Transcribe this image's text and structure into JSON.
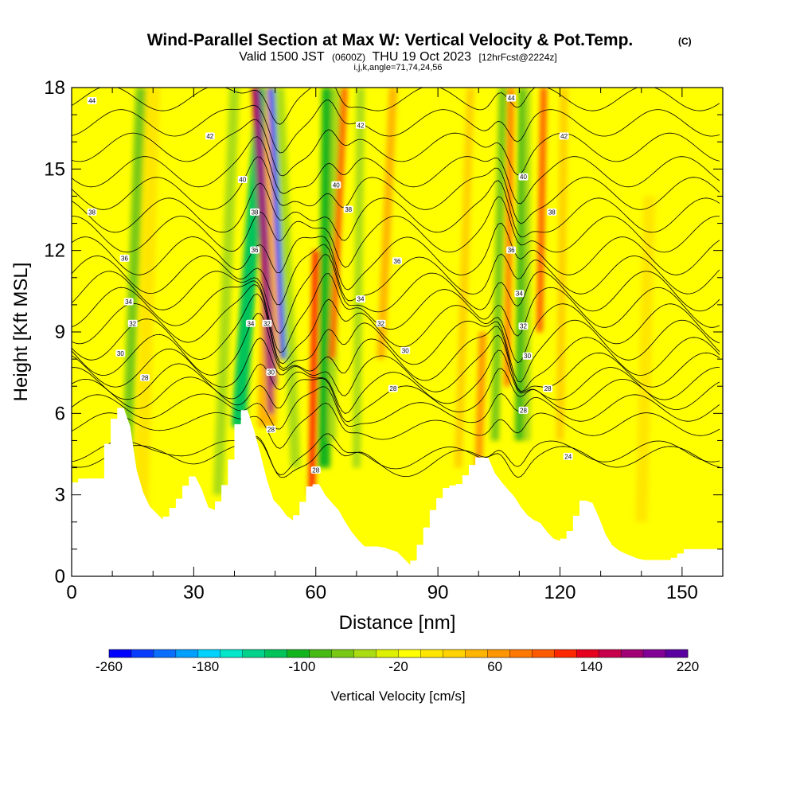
{
  "title": {
    "main": "Wind-Parallel Section at Max W: Vertical Velocity & Pot.Temp.",
    "copyright": "(C)",
    "valid_prefix": "Valid 1500 JST",
    "valid_utc": "(0600Z)",
    "valid_date": "THU 19 Oct 2023",
    "forecast": "[12hrFcst@2224z]",
    "indices": "i,j,k,angle=71,74,24,56"
  },
  "chart_data": {
    "type": "heatmap",
    "xlabel": "Distance [nm]",
    "ylabel": "Height [Kft MSL]",
    "xlim": [
      0,
      160
    ],
    "ylim": [
      0,
      18
    ],
    "xticks": [
      0,
      30,
      60,
      90,
      120,
      150
    ],
    "yticks": [
      0,
      3,
      6,
      9,
      12,
      15,
      18
    ],
    "xtick_labels": [
      "0",
      "30",
      "60",
      "90",
      "120",
      "150"
    ],
    "ytick_labels": [
      "0",
      "3",
      "6",
      "9",
      "12",
      "15",
      "18"
    ],
    "colorbar": {
      "title": "Vertical Velocity [cm/s]",
      "min": -260,
      "max": 220,
      "step": 20,
      "tick_values": [
        -260,
        -180,
        -100,
        -20,
        60,
        140,
        220
      ],
      "tick_labels": [
        "-260",
        "-180",
        "-100",
        "-20",
        "60",
        "140",
        "220"
      ],
      "colors": [
        "#0000ff",
        "#0a3cff",
        "#0a6eff",
        "#00a0ff",
        "#00d2ff",
        "#00e6c8",
        "#00d28c",
        "#00c35a",
        "#14b41e",
        "#46b914",
        "#78c814",
        "#aadc14",
        "#dcf000",
        "#ffff00",
        "#ffe600",
        "#ffd200",
        "#ffb400",
        "#ff9600",
        "#ff7800",
        "#ff5a00",
        "#ff2800",
        "#e6001e",
        "#c8004b",
        "#a00073",
        "#820096",
        "#5a00a0"
      ]
    },
    "terrain_profile": [
      {
        "x": 0,
        "h": 3.3
      },
      {
        "x": 3,
        "h": 3.6
      },
      {
        "x": 8,
        "h": 3.6
      },
      {
        "x": 10,
        "h": 5.2
      },
      {
        "x": 12,
        "h": 6.2
      },
      {
        "x": 14,
        "h": 6.2
      },
      {
        "x": 15,
        "h": 4.5
      },
      {
        "x": 17,
        "h": 3.3
      },
      {
        "x": 19,
        "h": 2.6
      },
      {
        "x": 21,
        "h": 2.3
      },
      {
        "x": 23,
        "h": 2.0
      },
      {
        "x": 25,
        "h": 2.4
      },
      {
        "x": 27,
        "h": 2.8
      },
      {
        "x": 29,
        "h": 3.4
      },
      {
        "x": 31,
        "h": 3.8
      },
      {
        "x": 33,
        "h": 2.6
      },
      {
        "x": 35,
        "h": 2.4
      },
      {
        "x": 37,
        "h": 2.8
      },
      {
        "x": 39,
        "h": 3.6
      },
      {
        "x": 41,
        "h": 5.0
      },
      {
        "x": 42,
        "h": 6.0
      },
      {
        "x": 44,
        "h": 6.2
      },
      {
        "x": 45,
        "h": 5.2
      },
      {
        "x": 47,
        "h": 4.2
      },
      {
        "x": 49,
        "h": 2.9
      },
      {
        "x": 51,
        "h": 2.6
      },
      {
        "x": 53,
        "h": 2.2
      },
      {
        "x": 55,
        "h": 2.0
      },
      {
        "x": 57,
        "h": 2.5
      },
      {
        "x": 59,
        "h": 3.3
      },
      {
        "x": 61,
        "h": 3.4
      },
      {
        "x": 63,
        "h": 2.8
      },
      {
        "x": 65,
        "h": 2.6
      },
      {
        "x": 68,
        "h": 1.8
      },
      {
        "x": 70,
        "h": 1.4
      },
      {
        "x": 72,
        "h": 1.1
      },
      {
        "x": 76,
        "h": 1.1
      },
      {
        "x": 80,
        "h": 0.9
      },
      {
        "x": 82,
        "h": 0.6
      },
      {
        "x": 84,
        "h": 0.3
      },
      {
        "x": 86,
        "h": 1.0
      },
      {
        "x": 88,
        "h": 1.8
      },
      {
        "x": 90,
        "h": 2.6
      },
      {
        "x": 93,
        "h": 3.3
      },
      {
        "x": 96,
        "h": 3.4
      },
      {
        "x": 98,
        "h": 3.8
      },
      {
        "x": 100,
        "h": 4.3
      },
      {
        "x": 102,
        "h": 4.5
      },
      {
        "x": 104,
        "h": 3.8
      },
      {
        "x": 106,
        "h": 3.4
      },
      {
        "x": 109,
        "h": 2.9
      },
      {
        "x": 111,
        "h": 2.4
      },
      {
        "x": 113,
        "h": 2.1
      },
      {
        "x": 115,
        "h": 2.0
      },
      {
        "x": 117,
        "h": 1.6
      },
      {
        "x": 119,
        "h": 1.3
      },
      {
        "x": 121,
        "h": 1.3
      },
      {
        "x": 123,
        "h": 1.6
      },
      {
        "x": 125,
        "h": 2.3
      },
      {
        "x": 127,
        "h": 3.0
      },
      {
        "x": 129,
        "h": 2.4
      },
      {
        "x": 131,
        "h": 1.6
      },
      {
        "x": 133,
        "h": 1.1
      },
      {
        "x": 135,
        "h": 0.9
      },
      {
        "x": 140,
        "h": 0.6
      },
      {
        "x": 148,
        "h": 0.6
      },
      {
        "x": 150,
        "h": 0.8
      },
      {
        "x": 152,
        "h": 1.0
      },
      {
        "x": 160,
        "h": 1.0
      }
    ],
    "velocity_bands": [
      {
        "x_base": 13,
        "x_top": 17,
        "width": 2.5,
        "value": -60,
        "h_from": 2,
        "h_to": 18
      },
      {
        "x_base": 16,
        "x_top": 19,
        "width": 1.2,
        "value": 80,
        "h_from": 2,
        "h_to": 18
      },
      {
        "x_base": 17,
        "x_top": 20,
        "width": 3.5,
        "value": 20,
        "h_from": 2,
        "h_to": 18
      },
      {
        "x_base": 36,
        "x_top": 40,
        "width": 2.5,
        "value": -40,
        "h_from": 3,
        "h_to": 18
      },
      {
        "x_base": 41,
        "x_top": 47,
        "width": 3.5,
        "value": -110,
        "h_from": 5.5,
        "h_to": 18
      },
      {
        "x_base": 48,
        "x_top": 50,
        "width": 4.5,
        "value": 60,
        "h_from": 5.5,
        "h_to": 18
      },
      {
        "x_base": 49,
        "x_top": 45,
        "width": 1.4,
        "value": 200,
        "h_from": 6,
        "h_to": 18
      },
      {
        "x_base": 50,
        "x_top": 46,
        "width": 0.8,
        "value": 220,
        "h_from": 7,
        "h_to": 18
      },
      {
        "x_base": 52,
        "x_top": 49,
        "width": 1.4,
        "value": -240,
        "h_from": 8,
        "h_to": 18
      },
      {
        "x_base": 55,
        "x_top": 51,
        "width": 2.5,
        "value": -30,
        "h_from": 4,
        "h_to": 18
      },
      {
        "x_base": 59,
        "x_top": 60,
        "width": 1.6,
        "value": 140,
        "h_from": 3,
        "h_to": 12
      },
      {
        "x_base": 62,
        "x_top": 63,
        "width": 3.0,
        "value": -100,
        "h_from": 4,
        "h_to": 18
      },
      {
        "x_base": 64,
        "x_top": 65,
        "width": 2.0,
        "value": -40,
        "h_from": 5,
        "h_to": 18
      },
      {
        "x_base": 64,
        "x_top": 67,
        "width": 1.5,
        "value": 120,
        "h_from": 8,
        "h_to": 18
      },
      {
        "x_base": 70,
        "x_top": 71,
        "width": 2.0,
        "value": -40,
        "h_from": 4,
        "h_to": 18
      },
      {
        "x_base": 76,
        "x_top": 79,
        "width": 2.0,
        "value": 60,
        "h_from": 8,
        "h_to": 18
      },
      {
        "x_base": 95,
        "x_top": 98,
        "width": 2.0,
        "value": 50,
        "h_from": 4,
        "h_to": 18
      },
      {
        "x_base": 104,
        "x_top": 106,
        "width": 2.0,
        "value": -60,
        "h_from": 5,
        "h_to": 18
      },
      {
        "x_base": 107,
        "x_top": 108,
        "width": 1.4,
        "value": 100,
        "h_from": 7,
        "h_to": 18
      },
      {
        "x_base": 110,
        "x_top": 111,
        "width": 2.2,
        "value": -70,
        "h_from": 5,
        "h_to": 18
      },
      {
        "x_base": 112,
        "x_top": 112,
        "width": 1.5,
        "value": -30,
        "h_from": 5,
        "h_to": 18
      },
      {
        "x_base": 115,
        "x_top": 116,
        "width": 1.5,
        "value": 120,
        "h_from": 9,
        "h_to": 18
      },
      {
        "x_base": 120,
        "x_top": 121,
        "width": 2.0,
        "value": 40,
        "h_from": 5,
        "h_to": 18
      },
      {
        "x_base": 100,
        "x_top": 101,
        "width": 1.8,
        "value": 80,
        "h_from": 4,
        "h_to": 9
      },
      {
        "x_base": 140,
        "x_top": 142,
        "width": 3.0,
        "value": 20,
        "h_from": 2,
        "h_to": 14
      },
      {
        "x_base": 148,
        "x_top": 150,
        "width": 4.0,
        "value": 10,
        "h_from": 1,
        "h_to": 18
      }
    ],
    "theta_contours": [
      {
        "value": 24,
        "base": 4.4,
        "gap": 1.1
      },
      {
        "value": 25,
        "base": 4.6,
        "gap": 1.1
      },
      {
        "value": 26,
        "base": 5.6,
        "gap": 1.2
      },
      {
        "value": 27,
        "base": 6.2,
        "gap": 1.4
      },
      {
        "value": 28,
        "base": 6.7,
        "gap": 1.6
      },
      {
        "value": 29,
        "base": 7.1,
        "gap": 1.7
      },
      {
        "value": 30,
        "base": 7.6,
        "gap": 1.8
      },
      {
        "value": 31,
        "base": 8.1,
        "gap": 2.0
      },
      {
        "value": 32,
        "base": 8.7,
        "gap": 2.1
      },
      {
        "value": 33,
        "base": 9.3,
        "gap": 2.1
      },
      {
        "value": 34,
        "base": 9.9,
        "gap": 2.1
      },
      {
        "value": 35,
        "base": 10.5,
        "gap": 2.1
      },
      {
        "value": 36,
        "base": 11.1,
        "gap": 2.0
      },
      {
        "value": 37,
        "base": 11.8,
        "gap": 2.0
      },
      {
        "value": 38,
        "base": 12.6,
        "gap": 1.9
      },
      {
        "value": 39,
        "base": 13.3,
        "gap": 1.8
      },
      {
        "value": 40,
        "base": 14.1,
        "gap": 1.7
      },
      {
        "value": 41,
        "base": 14.9,
        "gap": 1.6
      },
      {
        "value": 42,
        "base": 15.8,
        "gap": 1.5
      },
      {
        "value": 43,
        "base": 16.7,
        "gap": 1.4
      },
      {
        "value": 44,
        "base": 17.6,
        "gap": 1.3
      }
    ],
    "contour_labels": [
      {
        "text": "44",
        "x": 5,
        "y": 17.5
      },
      {
        "text": "44",
        "x": 108,
        "y": 17.6
      },
      {
        "text": "42",
        "x": 34,
        "y": 16.2
      },
      {
        "text": "42",
        "x": 71,
        "y": 16.6
      },
      {
        "text": "42",
        "x": 121,
        "y": 16.2
      },
      {
        "text": "40",
        "x": 42,
        "y": 14.6
      },
      {
        "text": "40",
        "x": 65,
        "y": 14.4
      },
      {
        "text": "40",
        "x": 111,
        "y": 14.7
      },
      {
        "text": "38",
        "x": 5,
        "y": 13.4
      },
      {
        "text": "38",
        "x": 68,
        "y": 13.5
      },
      {
        "text": "38",
        "x": 118,
        "y": 13.4
      },
      {
        "text": "38",
        "x": 45,
        "y": 13.4
      },
      {
        "text": "36",
        "x": 45,
        "y": 12.0
      },
      {
        "text": "36",
        "x": 13,
        "y": 11.7
      },
      {
        "text": "36",
        "x": 80,
        "y": 11.6
      },
      {
        "text": "36",
        "x": 108,
        "y": 12.0
      },
      {
        "text": "34",
        "x": 14,
        "y": 10.1
      },
      {
        "text": "34",
        "x": 71,
        "y": 10.2
      },
      {
        "text": "34",
        "x": 110,
        "y": 10.4
      },
      {
        "text": "34",
        "x": 44,
        "y": 9.3
      },
      {
        "text": "32",
        "x": 15,
        "y": 9.3
      },
      {
        "text": "32",
        "x": 48,
        "y": 9.3
      },
      {
        "text": "32",
        "x": 76,
        "y": 9.3
      },
      {
        "text": "32",
        "x": 111,
        "y": 9.2
      },
      {
        "text": "30",
        "x": 12,
        "y": 8.2
      },
      {
        "text": "30",
        "x": 82,
        "y": 8.3
      },
      {
        "text": "30",
        "x": 112,
        "y": 8.1
      },
      {
        "text": "30",
        "x": 49,
        "y": 7.5
      },
      {
        "text": "28",
        "x": 18,
        "y": 7.3
      },
      {
        "text": "28",
        "x": 79,
        "y": 6.9
      },
      {
        "text": "28",
        "x": 117,
        "y": 6.9
      },
      {
        "text": "28",
        "x": 111,
        "y": 6.1
      },
      {
        "text": "28",
        "x": 49,
        "y": 5.4
      },
      {
        "text": "28",
        "x": 60,
        "y": 3.9
      },
      {
        "text": "24",
        "x": 122,
        "y": 4.4
      }
    ]
  }
}
